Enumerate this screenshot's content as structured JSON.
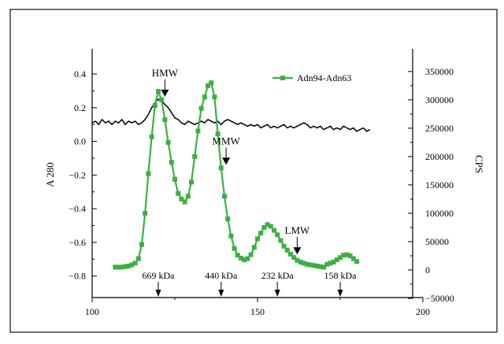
{
  "chart_data": {
    "type": "line",
    "xlim": [
      100,
      200
    ],
    "x_ticks": [
      100,
      150,
      200
    ],
    "left_axis": {
      "label": "A 280",
      "ylim": [
        -0.9,
        0.55
      ],
      "ticks": [
        0.4,
        0.2,
        0.0,
        -0.2,
        -0.4,
        -0.6,
        -0.8
      ],
      "tick_labels": [
        "0.4",
        "0.2",
        "0.0",
        "−0.2",
        "−0.4",
        "−0.6",
        "−0.8"
      ]
    },
    "right_axis": {
      "label": "CPS",
      "ylim": [
        -50000,
        390000
      ],
      "ticks": [
        350000,
        300000,
        250000,
        200000,
        150000,
        100000,
        50000,
        0,
        -50000
      ],
      "tick_labels": [
        "350000",
        "300000",
        "250000",
        "200000",
        "150000",
        "100000",
        "50000",
        "0",
        "−50000"
      ]
    },
    "grid": false,
    "legend": {
      "position": "top-right",
      "entries": [
        "Adn94-Adn63"
      ]
    },
    "series": [
      {
        "name": "",
        "axis": "left",
        "color": "#000000",
        "marker": "none",
        "x": [
          100,
          101,
          102,
          103,
          104,
          105,
          106,
          107,
          108,
          109,
          110,
          111,
          112,
          113,
          114,
          115,
          116,
          117,
          118,
          119,
          120,
          121,
          122,
          123,
          124,
          125,
          126,
          127,
          128,
          129,
          130,
          131,
          132,
          133,
          134,
          135,
          136,
          137,
          138,
          139,
          140,
          141,
          142,
          143,
          144,
          145,
          146,
          147,
          148,
          149,
          150,
          151,
          152,
          153,
          154,
          155,
          156,
          157,
          158,
          159,
          160,
          161,
          162,
          163,
          164,
          165,
          166,
          167,
          168,
          169,
          170,
          171,
          172,
          173,
          174,
          175,
          176,
          177,
          178,
          179,
          180,
          181,
          182,
          183,
          184
        ],
        "values": [
          0.11,
          0.12,
          0.1,
          0.13,
          0.11,
          0.12,
          0.1,
          0.12,
          0.11,
          0.13,
          0.1,
          0.12,
          0.11,
          0.12,
          0.1,
          0.11,
          0.13,
          0.16,
          0.2,
          0.23,
          0.25,
          0.24,
          0.22,
          0.2,
          0.17,
          0.14,
          0.13,
          0.11,
          0.1,
          0.12,
          0.11,
          0.1,
          0.11,
          0.12,
          0.11,
          0.13,
          0.12,
          0.11,
          0.12,
          0.1,
          0.12,
          0.13,
          0.12,
          0.11,
          0.1,
          0.11,
          0.1,
          0.09,
          0.1,
          0.09,
          0.1,
          0.08,
          0.09,
          0.1,
          0.08,
          0.09,
          0.08,
          0.09,
          0.1,
          0.08,
          0.09,
          0.08,
          0.09,
          0.1,
          0.11,
          0.1,
          0.08,
          0.09,
          0.08,
          0.09,
          0.07,
          0.08,
          0.09,
          0.07,
          0.08,
          0.07,
          0.09,
          0.08,
          0.07,
          0.08,
          0.06,
          0.07,
          0.08,
          0.06,
          0.07
        ]
      },
      {
        "name": "Adn94-Adn63",
        "axis": "right",
        "color": "#3cb043",
        "marker": "square",
        "x": [
          107,
          108,
          109,
          110,
          111,
          112,
          113,
          114,
          115,
          116,
          117,
          118,
          119,
          120,
          121,
          122,
          123,
          124,
          125,
          126,
          127,
          128,
          129,
          130,
          131,
          132,
          133,
          134,
          135,
          136,
          137,
          138,
          139,
          140,
          141,
          142,
          143,
          144,
          145,
          146,
          147,
          148,
          149,
          150,
          151,
          152,
          153,
          154,
          155,
          156,
          157,
          158,
          159,
          160,
          161,
          162,
          163,
          164,
          165,
          166,
          167,
          168,
          169,
          170,
          171,
          172,
          173,
          174,
          175,
          176,
          177,
          178,
          179,
          180
        ],
        "values": [
          5000,
          5000,
          5000,
          6000,
          7000,
          9000,
          12000,
          20000,
          45000,
          100000,
          170000,
          235000,
          290000,
          315000,
          300000,
          265000,
          225000,
          190000,
          160000,
          135000,
          125000,
          120000,
          130000,
          155000,
          200000,
          245000,
          285000,
          305000,
          325000,
          330000,
          305000,
          240000,
          180000,
          130000,
          90000,
          60000,
          38000,
          26000,
          21000,
          18000,
          20000,
          27000,
          40000,
          55000,
          65000,
          75000,
          80000,
          77000,
          70000,
          62000,
          52000,
          42000,
          35000,
          28000,
          22000,
          17000,
          14000,
          12000,
          10000,
          9000,
          8000,
          7000,
          6000,
          5000,
          10000,
          12000,
          14000,
          18000,
          22000,
          26000,
          27000,
          25000,
          20000,
          15000
        ]
      }
    ],
    "annotations": [
      {
        "text": "HMW",
        "x": 122
      },
      {
        "text": "MMW",
        "x": 140.5
      },
      {
        "text": "LMW",
        "x": 162
      },
      {
        "text": "669 kDa",
        "x": 120
      },
      {
        "text": "440 kDa",
        "x": 139
      },
      {
        "text": "232 kDa",
        "x": 156
      },
      {
        "text": "158 kDa",
        "x": 175
      }
    ]
  }
}
